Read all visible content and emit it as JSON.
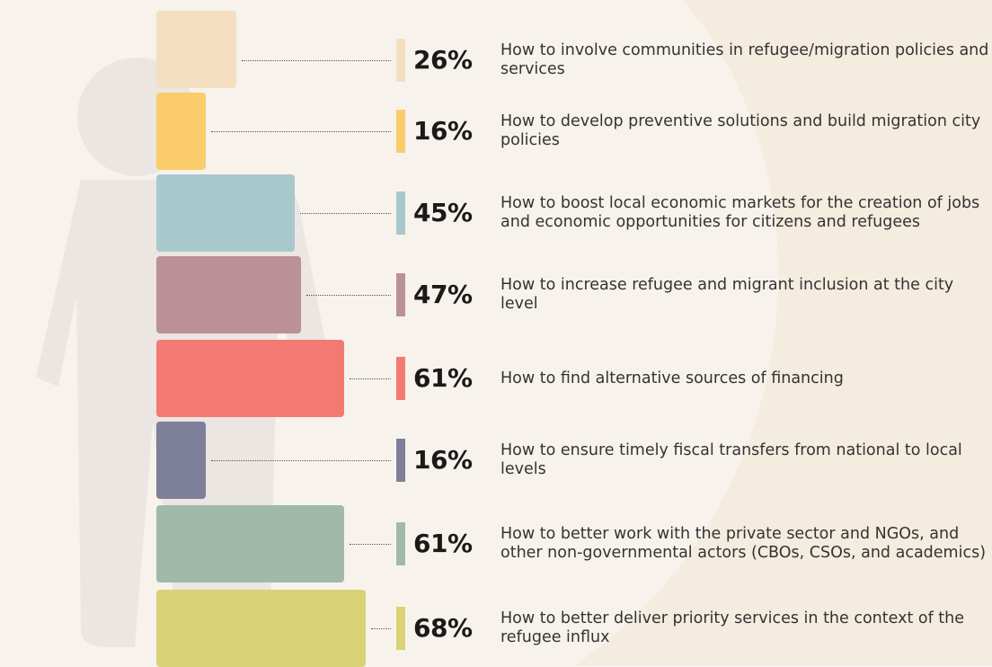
{
  "chart_data": {
    "type": "bar",
    "categories": [
      "How to involve communities in refugee/migration policies and services",
      "How to develop preventive solutions and build migration city policies",
      "How to boost local economic markets for the creation of jobs and economic opportunities for citizens and refugees",
      "How to increase refugee and migrant inclusion at the city level",
      "How to find alternative sources of financing",
      "How to ensure timely fiscal transfers from national to local levels",
      "How to better work with the private sector and NGOs, and other non-governmental actors (CBOs, CSOs, and academics)",
      "How to better deliver priority services in the context of the refugee influx"
    ],
    "values": [
      26,
      16,
      45,
      47,
      61,
      16,
      61,
      68
    ],
    "value_labels": [
      "26%",
      "16%",
      "45%",
      "47%",
      "61%",
      "16%",
      "61%",
      "68%"
    ],
    "colors": [
      "#f3dfc0",
      "#fbcc6a",
      "#a9c8cc",
      "#bb9099",
      "#f27a72",
      "#7e7f9b",
      "#9fbaab",
      "#d9d276"
    ]
  }
}
